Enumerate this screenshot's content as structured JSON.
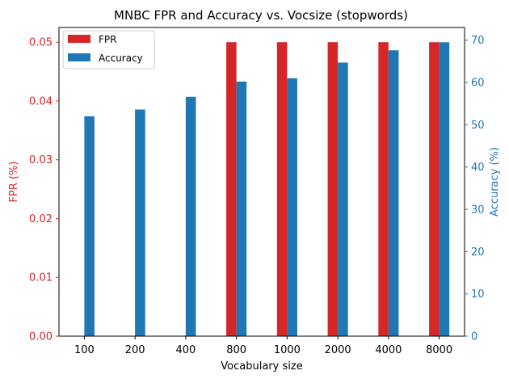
{
  "chart_data": {
    "type": "bar",
    "title": "MNBC FPR and Accuracy vs. Vocsize (stopwords)",
    "xlabel": "Vocabulary size",
    "ylabel_left": "FPR (%)",
    "ylabel_right": "Accuracy (%)",
    "categories": [
      "100",
      "200",
      "400",
      "800",
      "1000",
      "2000",
      "4000",
      "8000"
    ],
    "series": [
      {
        "name": "FPR",
        "axis": "left",
        "color": "#d62728",
        "values": [
          0,
          0,
          0,
          0.05,
          0.05,
          0.05,
          0.05,
          0.05
        ]
      },
      {
        "name": "Accuracy",
        "axis": "right",
        "color": "#1f77b4",
        "values": [
          52.0,
          53.6,
          56.6,
          60.2,
          61.0,
          64.7,
          67.6,
          69.5
        ]
      }
    ],
    "ylim_left": [
      0,
      0.0525
    ],
    "ylim_right": [
      0,
      73
    ],
    "yticks_left": [
      "0.00",
      "0.01",
      "0.02",
      "0.03",
      "0.04",
      "0.05"
    ],
    "yticks_right": [
      "0",
      "10",
      "20",
      "30",
      "40",
      "50",
      "60",
      "70"
    ],
    "left_axis_color": "#d62728",
    "right_axis_color": "#1f77b4",
    "grid": false,
    "legend_position": "top-left"
  }
}
